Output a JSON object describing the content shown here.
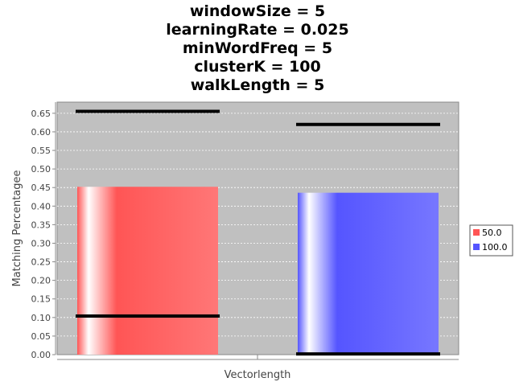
{
  "chart_data": {
    "type": "bar",
    "title_lines": [
      "windowSize = 5",
      "learningRate = 0.025",
      "minWordFreq = 5",
      "clusterK = 100",
      "walkLength = 5"
    ],
    "xlabel": "Vectorlength",
    "ylabel": "Matching Percentagee",
    "categories": [
      ""
    ],
    "ylim": [
      0,
      0.68
    ],
    "yticks": [
      0.0,
      0.05,
      0.1,
      0.15,
      0.2,
      0.25,
      0.3,
      0.35,
      0.4,
      0.45,
      0.5,
      0.55,
      0.6,
      0.65
    ],
    "ytick_labels": [
      "0.00",
      "0.05",
      "0.10",
      "0.15",
      "0.20",
      "0.25",
      "0.30",
      "0.35",
      "0.40",
      "0.45",
      "0.50",
      "0.55",
      "0.60",
      "0.65"
    ],
    "grid": true,
    "legend_position": "right",
    "series": [
      {
        "name": "50.0",
        "values": [
          0.452
        ],
        "min": [
          0.104
        ],
        "max": [
          0.655
        ],
        "color": "#ff5555"
      },
      {
        "name": "100.0",
        "values": [
          0.436
        ],
        "min": [
          0.002
        ],
        "max": [
          0.62
        ],
        "color": "#5555ff"
      }
    ],
    "plot_background": "#c0c0c0",
    "grid_color": "#ffffff"
  }
}
